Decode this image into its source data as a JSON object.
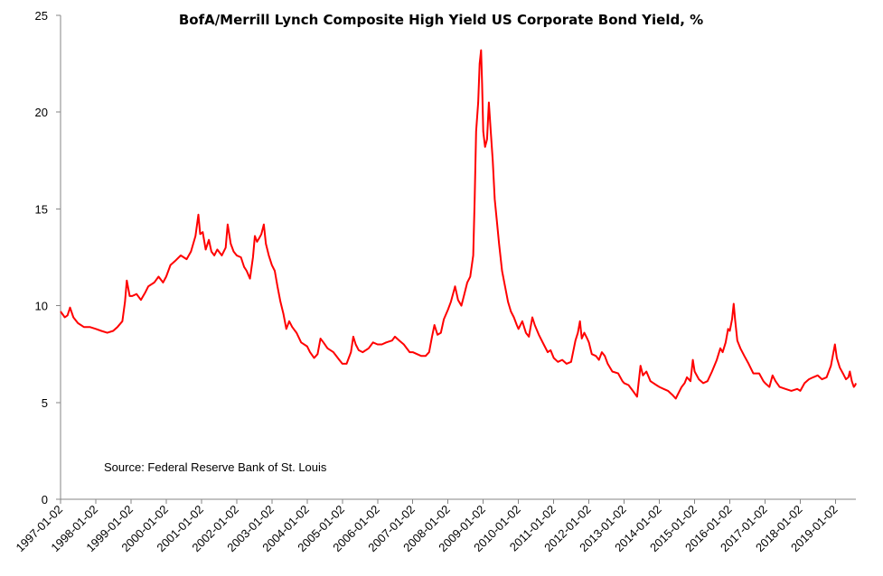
{
  "chart_data": {
    "type": "line",
    "title": "BofA/Merrill Lynch Composite High Yield US Corporate Bond Yield, %",
    "annotation": "Source: Federal Reserve Bank of St. Louis",
    "xlabel": "",
    "ylabel": "",
    "ylim": [
      0,
      25
    ],
    "yticks": [
      0,
      5,
      10,
      15,
      20,
      25
    ],
    "xlim": [
      "1997-01-02",
      "2019-08-01"
    ],
    "xticks": [
      "1997-01-02",
      "1998-01-02",
      "1999-01-02",
      "2000-01-02",
      "2001-01-02",
      "2002-01-02",
      "2003-01-02",
      "2004-01-02",
      "2005-01-02",
      "2006-01-02",
      "2007-01-02",
      "2008-01-02",
      "2009-01-02",
      "2010-01-02",
      "2011-01-02",
      "2012-01-02",
      "2013-01-02",
      "2014-01-02",
      "2015-01-02",
      "2016-01-02",
      "2017-01-02",
      "2018-01-02",
      "2019-01-02"
    ],
    "grid": false,
    "series": [
      {
        "color": "#ff0000",
        "points": [
          [
            "1997-01-02",
            9.7
          ],
          [
            "1997-02-15",
            9.4
          ],
          [
            "1997-03-15",
            9.5
          ],
          [
            "1997-04-10",
            9.9
          ],
          [
            "1997-05-15",
            9.4
          ],
          [
            "1997-07-01",
            9.1
          ],
          [
            "1997-09-01",
            8.9
          ],
          [
            "1997-11-01",
            8.9
          ],
          [
            "1998-01-02",
            8.8
          ],
          [
            "1998-03-01",
            8.7
          ],
          [
            "1998-05-01",
            8.6
          ],
          [
            "1998-07-01",
            8.7
          ],
          [
            "1998-08-15",
            8.9
          ],
          [
            "1998-10-05",
            9.2
          ],
          [
            "1998-11-01",
            10.2
          ],
          [
            "1998-11-20",
            11.3
          ],
          [
            "1998-12-20",
            10.5
          ],
          [
            "1999-01-15",
            10.5
          ],
          [
            "1999-03-01",
            10.6
          ],
          [
            "1999-04-15",
            10.3
          ],
          [
            "1999-06-01",
            10.7
          ],
          [
            "1999-07-01",
            11.0
          ],
          [
            "1999-09-01",
            11.2
          ],
          [
            "1999-10-15",
            11.5
          ],
          [
            "1999-12-01",
            11.2
          ],
          [
            "2000-01-02",
            11.5
          ],
          [
            "2000-02-15",
            12.1
          ],
          [
            "2000-04-01",
            12.3
          ],
          [
            "2000-06-01",
            12.6
          ],
          [
            "2000-08-01",
            12.4
          ],
          [
            "2000-09-15",
            12.8
          ],
          [
            "2000-11-01",
            13.6
          ],
          [
            "2000-12-01",
            14.7
          ],
          [
            "2000-12-20",
            13.7
          ],
          [
            "2001-01-15",
            13.8
          ],
          [
            "2001-02-15",
            12.9
          ],
          [
            "2001-03-20",
            13.4
          ],
          [
            "2001-04-15",
            12.8
          ],
          [
            "2001-05-15",
            12.6
          ],
          [
            "2001-06-15",
            12.9
          ],
          [
            "2001-08-01",
            12.6
          ],
          [
            "2001-09-10",
            13.0
          ],
          [
            "2001-10-01",
            14.2
          ],
          [
            "2001-11-01",
            13.2
          ],
          [
            "2001-12-01",
            12.8
          ],
          [
            "2002-01-02",
            12.6
          ],
          [
            "2002-02-15",
            12.5
          ],
          [
            "2002-03-20",
            12.0
          ],
          [
            "2002-04-15",
            11.8
          ],
          [
            "2002-05-20",
            11.4
          ],
          [
            "2002-06-20",
            12.5
          ],
          [
            "2002-07-10",
            13.6
          ],
          [
            "2002-08-01",
            13.3
          ],
          [
            "2002-08-25",
            13.5
          ],
          [
            "2002-09-15",
            13.7
          ],
          [
            "2002-10-10",
            14.2
          ],
          [
            "2002-11-01",
            13.2
          ],
          [
            "2002-12-01",
            12.6
          ],
          [
            "2003-01-02",
            12.1
          ],
          [
            "2003-02-01",
            11.8
          ],
          [
            "2003-03-01",
            11.0
          ],
          [
            "2003-04-01",
            10.2
          ],
          [
            "2003-05-01",
            9.6
          ],
          [
            "2003-06-01",
            8.8
          ],
          [
            "2003-07-01",
            9.2
          ],
          [
            "2003-08-01",
            8.9
          ],
          [
            "2003-09-15",
            8.6
          ],
          [
            "2003-11-01",
            8.1
          ],
          [
            "2004-01-02",
            7.9
          ],
          [
            "2004-02-01",
            7.6
          ],
          [
            "2004-03-15",
            7.3
          ],
          [
            "2004-04-20",
            7.5
          ],
          [
            "2004-05-20",
            8.3
          ],
          [
            "2004-06-20",
            8.1
          ],
          [
            "2004-08-01",
            7.8
          ],
          [
            "2004-10-01",
            7.6
          ],
          [
            "2004-12-01",
            7.2
          ],
          [
            "2005-01-02",
            7.0
          ],
          [
            "2005-02-15",
            7.0
          ],
          [
            "2005-04-01",
            7.6
          ],
          [
            "2005-04-25",
            8.4
          ],
          [
            "2005-05-20",
            8.0
          ],
          [
            "2005-06-20",
            7.7
          ],
          [
            "2005-08-01",
            7.6
          ],
          [
            "2005-10-01",
            7.8
          ],
          [
            "2005-11-15",
            8.1
          ],
          [
            "2006-01-02",
            8.0
          ],
          [
            "2006-02-15",
            8.0
          ],
          [
            "2006-04-01",
            8.1
          ],
          [
            "2006-06-01",
            8.2
          ],
          [
            "2006-07-01",
            8.4
          ],
          [
            "2006-08-15",
            8.2
          ],
          [
            "2006-10-01",
            8.0
          ],
          [
            "2006-12-01",
            7.6
          ],
          [
            "2007-01-02",
            7.6
          ],
          [
            "2007-02-15",
            7.5
          ],
          [
            "2007-04-01",
            7.4
          ],
          [
            "2007-05-15",
            7.4
          ],
          [
            "2007-06-20",
            7.6
          ],
          [
            "2007-07-20",
            8.4
          ],
          [
            "2007-08-15",
            9.0
          ],
          [
            "2007-09-15",
            8.5
          ],
          [
            "2007-10-20",
            8.6
          ],
          [
            "2007-11-20",
            9.3
          ],
          [
            "2008-01-02",
            9.8
          ],
          [
            "2008-02-01",
            10.2
          ],
          [
            "2008-03-15",
            11.0
          ],
          [
            "2008-04-15",
            10.3
          ],
          [
            "2008-05-20",
            10.0
          ],
          [
            "2008-06-20",
            10.6
          ],
          [
            "2008-07-20",
            11.2
          ],
          [
            "2008-08-20",
            11.5
          ],
          [
            "2008-09-20",
            12.6
          ],
          [
            "2008-10-05",
            15.5
          ],
          [
            "2008-10-20",
            19.0
          ],
          [
            "2008-11-10",
            20.5
          ],
          [
            "2008-11-25",
            22.5
          ],
          [
            "2008-12-10",
            23.2
          ],
          [
            "2008-12-20",
            21.5
          ],
          [
            "2009-01-02",
            19.0
          ],
          [
            "2009-01-20",
            18.2
          ],
          [
            "2009-02-10",
            18.6
          ],
          [
            "2009-03-01",
            20.5
          ],
          [
            "2009-03-20",
            19.0
          ],
          [
            "2009-04-10",
            17.5
          ],
          [
            "2009-05-01",
            15.5
          ],
          [
            "2009-05-20",
            14.5
          ],
          [
            "2009-06-15",
            13.2
          ],
          [
            "2009-07-15",
            11.8
          ],
          [
            "2009-08-15",
            11.0
          ],
          [
            "2009-09-15",
            10.2
          ],
          [
            "2009-10-15",
            9.7
          ],
          [
            "2009-11-15",
            9.4
          ],
          [
            "2009-12-15",
            9.0
          ],
          [
            "2010-01-02",
            8.8
          ],
          [
            "2010-02-10",
            9.2
          ],
          [
            "2010-03-20",
            8.6
          ],
          [
            "2010-04-20",
            8.4
          ],
          [
            "2010-05-25",
            9.4
          ],
          [
            "2010-06-20",
            9.0
          ],
          [
            "2010-08-01",
            8.5
          ],
          [
            "2010-09-20",
            8.0
          ],
          [
            "2010-11-01",
            7.6
          ],
          [
            "2010-12-01",
            7.7
          ],
          [
            "2011-01-02",
            7.3
          ],
          [
            "2011-02-15",
            7.1
          ],
          [
            "2011-04-01",
            7.2
          ],
          [
            "2011-05-15",
            7.0
          ],
          [
            "2011-07-01",
            7.1
          ],
          [
            "2011-08-15",
            8.2
          ],
          [
            "2011-09-10",
            8.6
          ],
          [
            "2011-10-01",
            9.2
          ],
          [
            "2011-10-20",
            8.3
          ],
          [
            "2011-11-15",
            8.6
          ],
          [
            "2011-12-15",
            8.3
          ],
          [
            "2012-01-02",
            8.1
          ],
          [
            "2012-02-01",
            7.5
          ],
          [
            "2012-03-15",
            7.4
          ],
          [
            "2012-04-15",
            7.2
          ],
          [
            "2012-05-15",
            7.6
          ],
          [
            "2012-06-15",
            7.4
          ],
          [
            "2012-07-15",
            7.0
          ],
          [
            "2012-09-01",
            6.6
          ],
          [
            "2012-11-01",
            6.5
          ],
          [
            "2012-12-15",
            6.1
          ],
          [
            "2013-01-02",
            6.0
          ],
          [
            "2013-02-15",
            5.9
          ],
          [
            "2013-04-01",
            5.6
          ],
          [
            "2013-05-15",
            5.3
          ],
          [
            "2013-06-20",
            6.9
          ],
          [
            "2013-07-15",
            6.4
          ],
          [
            "2013-08-20",
            6.6
          ],
          [
            "2013-10-01",
            6.1
          ],
          [
            "2013-12-01",
            5.9
          ],
          [
            "2014-01-02",
            5.8
          ],
          [
            "2014-02-15",
            5.7
          ],
          [
            "2014-04-01",
            5.6
          ],
          [
            "2014-05-15",
            5.4
          ],
          [
            "2014-06-20",
            5.2
          ],
          [
            "2014-07-20",
            5.5
          ],
          [
            "2014-08-20",
            5.8
          ],
          [
            "2014-09-20",
            6.0
          ],
          [
            "2014-10-15",
            6.3
          ],
          [
            "2014-11-20",
            6.1
          ],
          [
            "2014-12-15",
            7.2
          ],
          [
            "2015-01-02",
            6.6
          ],
          [
            "2015-02-15",
            6.2
          ],
          [
            "2015-04-01",
            6.0
          ],
          [
            "2015-05-15",
            6.1
          ],
          [
            "2015-07-01",
            6.6
          ],
          [
            "2015-08-20",
            7.2
          ],
          [
            "2015-09-25",
            7.8
          ],
          [
            "2015-10-20",
            7.6
          ],
          [
            "2015-11-20",
            8.1
          ],
          [
            "2015-12-15",
            8.8
          ],
          [
            "2016-01-02",
            8.7
          ],
          [
            "2016-01-25",
            9.3
          ],
          [
            "2016-02-11",
            10.1
          ],
          [
            "2016-02-25",
            9.3
          ],
          [
            "2016-03-20",
            8.2
          ],
          [
            "2016-04-20",
            7.8
          ],
          [
            "2016-06-01",
            7.4
          ],
          [
            "2016-07-15",
            7.0
          ],
          [
            "2016-09-01",
            6.5
          ],
          [
            "2016-11-01",
            6.5
          ],
          [
            "2016-12-15",
            6.1
          ],
          [
            "2017-01-02",
            6.0
          ],
          [
            "2017-02-15",
            5.8
          ],
          [
            "2017-03-20",
            6.4
          ],
          [
            "2017-04-20",
            6.1
          ],
          [
            "2017-06-01",
            5.8
          ],
          [
            "2017-08-01",
            5.7
          ],
          [
            "2017-10-01",
            5.6
          ],
          [
            "2017-12-01",
            5.7
          ],
          [
            "2018-01-02",
            5.6
          ],
          [
            "2018-02-15",
            6.0
          ],
          [
            "2018-04-01",
            6.2
          ],
          [
            "2018-05-15",
            6.3
          ],
          [
            "2018-07-01",
            6.4
          ],
          [
            "2018-08-15",
            6.2
          ],
          [
            "2018-10-01",
            6.3
          ],
          [
            "2018-11-15",
            6.9
          ],
          [
            "2018-12-27",
            8.0
          ],
          [
            "2019-01-15",
            7.3
          ],
          [
            "2019-02-15",
            6.8
          ],
          [
            "2019-03-20",
            6.5
          ],
          [
            "2019-04-20",
            6.2
          ],
          [
            "2019-05-15",
            6.3
          ],
          [
            "2019-05-30",
            6.6
          ],
          [
            "2019-06-20",
            6.1
          ],
          [
            "2019-07-10",
            5.8
          ],
          [
            "2019-07-25",
            5.9
          ],
          [
            "2019-08-01",
            6.0
          ]
        ]
      }
    ]
  }
}
